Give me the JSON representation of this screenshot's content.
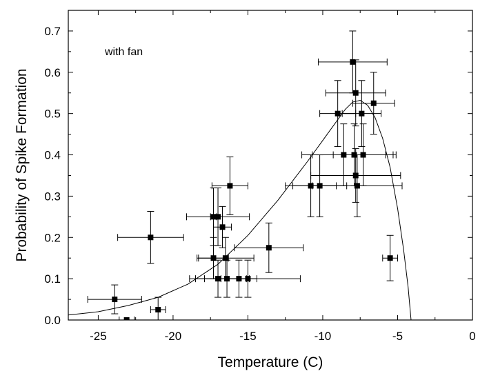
{
  "chart_data": {
    "type": "scatter",
    "xlabel": "Temperature (C)",
    "ylabel": "Probability of Spike Formation",
    "annotation": "with fan",
    "xlim": [
      -27,
      0
    ],
    "ylim": [
      0,
      0.75
    ],
    "x_ticks": [
      -25,
      -20,
      -15,
      -10,
      -5,
      0
    ],
    "x_tick_labels": [
      "-25",
      "-20",
      "-15",
      "-10",
      "-5",
      "0"
    ],
    "y_ticks": [
      0.0,
      0.1,
      0.2,
      0.3,
      0.4,
      0.5,
      0.6,
      0.7
    ],
    "y_tick_labels": [
      "0.0",
      "0.1",
      "0.2",
      "0.3",
      "0.4",
      "0.5",
      "0.6",
      "0.7"
    ],
    "grid": false,
    "legend": "none",
    "points": [
      {
        "x": -23.9,
        "y": 0.05,
        "xerr": 1.8,
        "yerr": 0.035
      },
      {
        "x": -23.1,
        "y": 0.0,
        "xerr": 0.5,
        "yerr": 0
      },
      {
        "x": -21.0,
        "y": 0.025,
        "xerr": 0.5,
        "yerr": 0.03
      },
      {
        "x": -21.5,
        "y": 0.2,
        "xerr": 2.2,
        "yerr": 0.063
      },
      {
        "x": -17.3,
        "y": 0.25,
        "xerr": 0.2,
        "yerr": 0.07
      },
      {
        "x": -17.0,
        "y": 0.25,
        "xerr": 2.1,
        "yerr": 0.07
      },
      {
        "x": -17.3,
        "y": 0.15,
        "xerr": 1.0,
        "yerr": 0.05
      },
      {
        "x": -17.0,
        "y": 0.1,
        "xerr": 1.9,
        "yerr": 0.045
      },
      {
        "x": -16.7,
        "y": 0.225,
        "xerr": 0.6,
        "yerr": 0.05
      },
      {
        "x": -16.5,
        "y": 0.15,
        "xerr": 1.9,
        "yerr": 0.05
      },
      {
        "x": -16.4,
        "y": 0.1,
        "xerr": 1.5,
        "yerr": 0.045
      },
      {
        "x": -16.2,
        "y": 0.325,
        "xerr": 1.2,
        "yerr": 0.07
      },
      {
        "x": -15.6,
        "y": 0.1,
        "xerr": 1.2,
        "yerr": 0.045
      },
      {
        "x": -15.0,
        "y": 0.1,
        "xerr": 3.5,
        "yerr": 0.045
      },
      {
        "x": -13.6,
        "y": 0.175,
        "xerr": 2.3,
        "yerr": 0.06
      },
      {
        "x": -10.8,
        "y": 0.325,
        "xerr": 1.7,
        "yerr": 0.075
      },
      {
        "x": -10.2,
        "y": 0.325,
        "xerr": 1.8,
        "yerr": 0.075
      },
      {
        "x": -8.6,
        "y": 0.4,
        "xerr": 2.8,
        "yerr": 0.075
      },
      {
        "x": -7.9,
        "y": 0.4,
        "xerr": 2.8,
        "yerr": 0.075
      },
      {
        "x": -7.3,
        "y": 0.4,
        "xerr": 2.0,
        "yerr": 0.075
      },
      {
        "x": -7.8,
        "y": 0.35,
        "xerr": 3.0,
        "yerr": 0.065
      },
      {
        "x": -7.7,
        "y": 0.325,
        "xerr": 3.0,
        "yerr": 0.075
      },
      {
        "x": -9.0,
        "y": 0.5,
        "xerr": 1.2,
        "yerr": 0.08
      },
      {
        "x": -7.4,
        "y": 0.5,
        "xerr": 1.3,
        "yerr": 0.08
      },
      {
        "x": -7.8,
        "y": 0.55,
        "xerr": 2.0,
        "yerr": 0.08
      },
      {
        "x": -6.6,
        "y": 0.525,
        "xerr": 1.4,
        "yerr": 0.075
      },
      {
        "x": -8.0,
        "y": 0.625,
        "xerr": 2.3,
        "yerr": 0.075
      },
      {
        "x": -5.5,
        "y": 0.15,
        "xerr": 0.5,
        "yerr": 0.055
      }
    ],
    "fit_curve": [
      [
        -27,
        0.012
      ],
      [
        -25,
        0.02
      ],
      [
        -23,
        0.035
      ],
      [
        -21,
        0.055
      ],
      [
        -19,
        0.087
      ],
      [
        -17,
        0.135
      ],
      [
        -15,
        0.205
      ],
      [
        -13,
        0.29
      ],
      [
        -11,
        0.385
      ],
      [
        -10,
        0.435
      ],
      [
        -9,
        0.485
      ],
      [
        -8.5,
        0.51
      ],
      [
        -8,
        0.528
      ],
      [
        -7.5,
        0.532
      ],
      [
        -7,
        0.52
      ],
      [
        -6.5,
        0.49
      ],
      [
        -6,
        0.44
      ],
      [
        -5.5,
        0.37
      ],
      [
        -5,
        0.27
      ],
      [
        -4.6,
        0.17
      ],
      [
        -4.3,
        0.08
      ],
      [
        -4.1,
        0.0
      ]
    ]
  }
}
